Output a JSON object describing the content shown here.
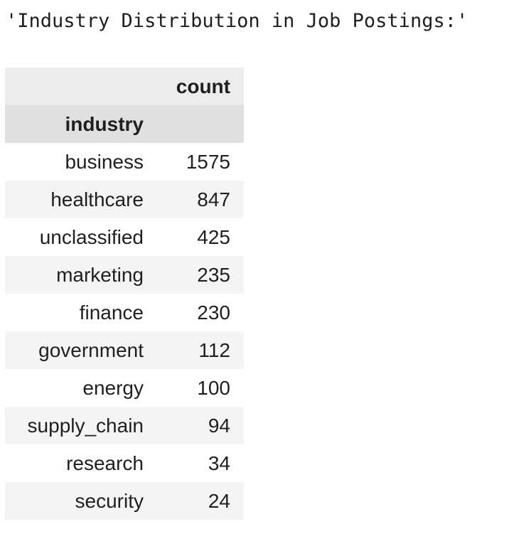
{
  "output": {
    "text": "'Industry Distribution in Job Postings:'"
  },
  "table": {
    "value_column": "count",
    "index_name": "industry",
    "rows": [
      {
        "label": "business",
        "count": "1575"
      },
      {
        "label": "healthcare",
        "count": "847"
      },
      {
        "label": "unclassified",
        "count": "425"
      },
      {
        "label": "marketing",
        "count": "235"
      },
      {
        "label": "finance",
        "count": "230"
      },
      {
        "label": "government",
        "count": "112"
      },
      {
        "label": "energy",
        "count": "100"
      },
      {
        "label": "supply_chain",
        "count": "94"
      },
      {
        "label": "research",
        "count": "34"
      },
      {
        "label": "security",
        "count": "24"
      }
    ]
  },
  "colors": {
    "header_bg": "#ececec",
    "index_header_bg": "#e0e0e0",
    "stripe_bg": "#f4f4f4",
    "text": "#1f1f1f"
  }
}
